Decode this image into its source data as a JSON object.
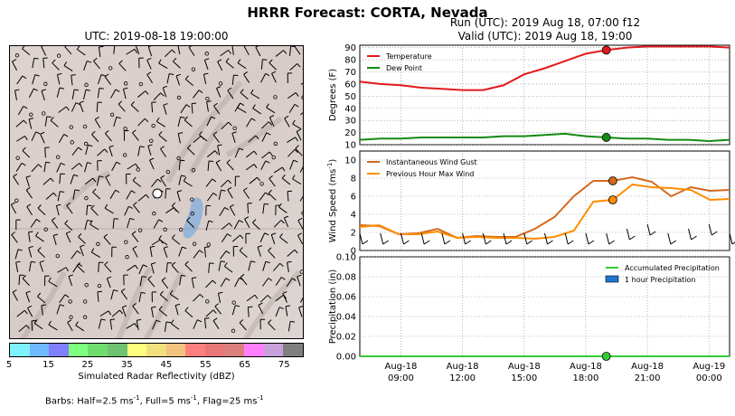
{
  "figure": {
    "title": "HRRR Forecast: CORTA, Nevada",
    "map_title": "UTC: 2019-08-18 19:00:00",
    "run_line": "Run (UTC): 2019 Aug 18, 07:00 f12",
    "valid_line": "Valid (UTC): 2019 Aug 18, 19:00",
    "colorbar_label": "Simulated Radar Reflectivity (dBZ)",
    "colorbar_ticks": [
      "5",
      "15",
      "25",
      "35",
      "45",
      "55",
      "65",
      "75"
    ],
    "colorbar_colors": [
      "#7ff2ff",
      "#6fb9ff",
      "#7f7fff",
      "#7fff7f",
      "#6fdc6f",
      "#6fc26f",
      "#ffff7f",
      "#f2e07f",
      "#f2c27f",
      "#ff7f7f",
      "#e87777",
      "#dc7f7f",
      "#ff7fff",
      "#c8a0dc",
      "#7f7f7f"
    ],
    "barbs_note": "Barbs: Half=2.5 ms",
    "barbs_note_rest": ", Full=5 ms",
    "barbs_note_rest2": ", Flag=25 ms",
    "barbs_sup": "-1"
  },
  "chart_data": [
    {
      "type": "line",
      "ylabel": "Degrees (F)",
      "ylim": [
        10,
        92
      ],
      "yticks": [
        10,
        20,
        30,
        40,
        50,
        60,
        70,
        80,
        90
      ],
      "grid": true,
      "legend_placement": "top-left",
      "x": [
        "2019-08-18 07:00",
        "08:00",
        "09:00",
        "10:00",
        "11:00",
        "12:00",
        "13:00",
        "14:00",
        "15:00",
        "16:00",
        "17:00",
        "18:00",
        "19:00",
        "20:00",
        "21:00",
        "22:00",
        "23:00",
        "2019-08-19 00:00",
        "01:00"
      ],
      "series": [
        {
          "name": "Temperature",
          "color": "#e31a1c",
          "values": [
            62,
            60,
            59,
            57,
            56,
            55,
            55,
            59,
            68,
            73,
            79,
            85,
            88,
            90,
            91,
            91,
            91,
            91,
            90
          ]
        },
        {
          "name": "Dew Point",
          "color": "#138a13",
          "values": [
            14,
            15,
            15,
            16,
            16,
            16,
            16,
            17,
            17,
            18,
            19,
            17,
            16,
            15,
            15,
            14,
            14,
            13,
            14
          ]
        }
      ],
      "highlight_time": "19:00"
    },
    {
      "type": "line",
      "ylabel": "Wind Speed (ms",
      "ylabel_sup": "-1",
      "ylabel_end": ")",
      "ylim": [
        0,
        11
      ],
      "yticks": [
        0,
        2,
        4,
        6,
        8,
        10
      ],
      "grid": true,
      "legend_placement": "top-left",
      "x": [
        "07:00",
        "07:30",
        "08:00",
        "09:00",
        "10:00",
        "11:00",
        "12:00",
        "13:00",
        "14:00",
        "15:00",
        "16:00",
        "17:00",
        "18:00",
        "19:00",
        "20:00",
        "21:00",
        "22:00",
        "23:00",
        "2019-08-19 00:00",
        "01:00"
      ],
      "series": [
        {
          "name": "Instantaneous Wind Gust",
          "color": "#d2691e",
          "values": [
            2.8,
            2.7,
            1.8,
            1.9,
            2.4,
            1.4,
            1.6,
            1.5,
            1.5,
            2.4,
            3.7,
            6.0,
            7.7,
            7.7,
            8.1,
            7.6,
            6.0,
            7.0,
            6.6,
            6.7
          ]
        },
        {
          "name": "Previous Hour Max Wind",
          "color": "#ff8c00",
          "values": [
            2.6,
            2.8,
            1.8,
            1.8,
            2.1,
            1.4,
            1.5,
            1.4,
            1.4,
            1.3,
            1.5,
            2.2,
            5.4,
            5.6,
            7.3,
            7.0,
            6.9,
            6.7,
            5.6,
            5.7
          ]
        }
      ],
      "highlight_time": "19:00"
    },
    {
      "type": "line",
      "ylabel": "Precipitation (in)",
      "ylim": [
        0,
        0.1
      ],
      "yticks": [
        0.0,
        0.02,
        0.04,
        0.06,
        0.08,
        0.1
      ],
      "grid": true,
      "legend_placement": "top-right",
      "x_tick_labels": [
        [
          "Aug-18",
          "09:00"
        ],
        [
          "Aug-18",
          "12:00"
        ],
        [
          "Aug-18",
          "15:00"
        ],
        [
          "Aug-18",
          "18:00"
        ],
        [
          "Aug-18",
          "21:00"
        ],
        [
          "Aug-19",
          "00:00"
        ]
      ],
      "series": [
        {
          "name": "Accumulated Precipitation",
          "color": "#33cc33",
          "values": [
            0,
            0,
            0,
            0,
            0,
            0,
            0,
            0,
            0,
            0,
            0,
            0,
            0,
            0,
            0,
            0,
            0,
            0,
            0
          ]
        },
        {
          "name": "1 hour Precipitation",
          "color": "#1f78d0",
          "values": [
            0,
            0,
            0,
            0,
            0,
            0,
            0,
            0,
            0,
            0,
            0,
            0,
            0,
            0,
            0,
            0,
            0,
            0,
            0
          ]
        }
      ],
      "highlight_time": "19:00"
    }
  ]
}
